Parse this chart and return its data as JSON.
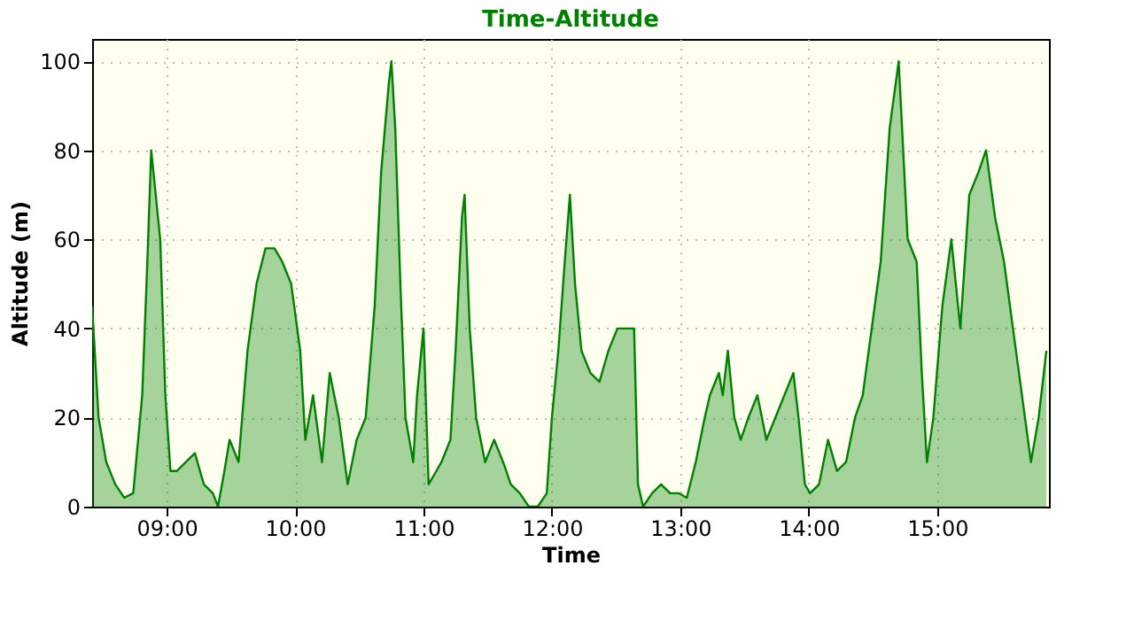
{
  "chart_data": {
    "type": "area",
    "title": "Time-Altitude",
    "xlabel": "Time",
    "ylabel": "Altitude (m)",
    "x": [
      8.42,
      8.47,
      8.53,
      8.6,
      8.67,
      8.74,
      8.81,
      8.85,
      8.88,
      8.95,
      8.99,
      9.03,
      9.08,
      9.15,
      9.22,
      9.29,
      9.36,
      9.4,
      9.45,
      9.49,
      9.56,
      9.63,
      9.7,
      9.77,
      9.84,
      9.9,
      9.97,
      10.04,
      10.08,
      10.14,
      10.21,
      10.27,
      10.34,
      10.41,
      10.48,
      10.55,
      10.62,
      10.67,
      10.73,
      10.75,
      10.78,
      10.82,
      10.86,
      10.92,
      10.95,
      11.0,
      11.04,
      11.1,
      11.14,
      11.21,
      11.25,
      11.3,
      11.32,
      11.36,
      11.41,
      11.48,
      11.55,
      11.62,
      11.68,
      11.75,
      11.82,
      11.89,
      11.96,
      12.0,
      12.05,
      12.1,
      12.14,
      12.18,
      12.23,
      12.3,
      12.37,
      12.44,
      12.51,
      12.58,
      12.64,
      12.67,
      12.71,
      12.78,
      12.85,
      12.92,
      12.99,
      13.05,
      13.12,
      13.19,
      13.23,
      13.3,
      13.33,
      13.37,
      13.42,
      13.47,
      13.53,
      13.6,
      13.67,
      13.74,
      13.81,
      13.88,
      13.92,
      13.97,
      14.01,
      14.08,
      14.15,
      14.22,
      14.29,
      14.36,
      14.42,
      14.49,
      14.56,
      14.63,
      14.7,
      14.77,
      14.84,
      14.88,
      14.92,
      14.97,
      15.04,
      15.11,
      15.18,
      15.25,
      15.32,
      15.38,
      15.45,
      15.52,
      15.59,
      15.66,
      15.73,
      15.79,
      15.85
    ],
    "series": [
      {
        "color": "#008000",
        "values": [
          45,
          20,
          10,
          5,
          2,
          3,
          25,
          55,
          80,
          60,
          25,
          8,
          8,
          10,
          12,
          5,
          3,
          0,
          8,
          15,
          10,
          35,
          50,
          58,
          58,
          55,
          50,
          35,
          15,
          25,
          10,
          30,
          20,
          5,
          15,
          20,
          45,
          75,
          95,
          100,
          85,
          50,
          20,
          10,
          25,
          40,
          5,
          8,
          10,
          15,
          35,
          65,
          70,
          40,
          20,
          10,
          15,
          10,
          5,
          3,
          0,
          0,
          3,
          20,
          35,
          55,
          70,
          50,
          35,
          30,
          28,
          35,
          40,
          40,
          40,
          5,
          0,
          3,
          5,
          3,
          3,
          2,
          10,
          20,
          25,
          30,
          25,
          35,
          20,
          15,
          20,
          25,
          15,
          20,
          25,
          30,
          20,
          5,
          3,
          5,
          15,
          8,
          10,
          20,
          25,
          40,
          55,
          85,
          100,
          60,
          55,
          30,
          10,
          20,
          45,
          60,
          40,
          70,
          75,
          80,
          65,
          55,
          40,
          25,
          10,
          20,
          35
        ]
      }
    ],
    "xlim": [
      8.42,
      15.87
    ],
    "xticks": [
      {
        "value": 9,
        "label": "09:00"
      },
      {
        "value": 10,
        "label": "10:00"
      },
      {
        "value": 11,
        "label": "11:00"
      },
      {
        "value": 12,
        "label": "12:00"
      },
      {
        "value": 13,
        "label": "13:00"
      },
      {
        "value": 14,
        "label": "14:00"
      },
      {
        "value": 15,
        "label": "15:00"
      }
    ],
    "ylim": [
      0,
      105
    ],
    "yticks": [
      0,
      20,
      40,
      60,
      80,
      100
    ],
    "grid": true,
    "line_style": "solid",
    "marker": "none"
  }
}
